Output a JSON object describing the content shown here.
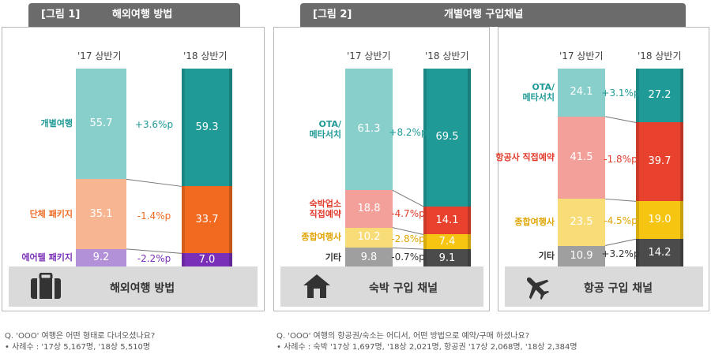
{
  "figure1": {
    "tab_number": "[그림 1]",
    "tab_title": "해외여행 방법",
    "footer_label": "해외여행 방법",
    "footer_icon": "suitcase-icon",
    "note_question": "Q. 'OOO' 여행은 어떤 형태로 다녀오셨나요?",
    "note_sample": "• 사례수 : '17상 5,167명, '18상 5,510명"
  },
  "figure2": {
    "tab_number": "[그림 2]",
    "tab_title": "개별여행 구입채널",
    "lodging_footer_label": "숙박 구입 채널",
    "lodging_footer_icon": "house-icon",
    "flight_footer_label": "항공 구입 채널",
    "flight_footer_icon": "airplane-icon",
    "note_question": "Q. 'OOO' 여행의 항공권/숙소는 어디서, 어떤 방법으로 예약/구매 하셨나요?",
    "note_sample": "• 사례수 : 숙박 '17상 1,697명, '18상 2,021명, 항공권 '17상 2,068명, '18상 2,384명"
  },
  "chart_data": [
    {
      "type": "bar",
      "stacked": true,
      "categories": [
        "'17 상반기",
        "'18 상반기"
      ],
      "series": [
        {
          "name": "개별여행",
          "values": [
            55.7,
            59.3
          ],
          "change": "+3.6%p",
          "colors": [
            "#88cfcb",
            "#1f9a97"
          ],
          "label_color": "#1f9a97"
        },
        {
          "name": "단체 패키지",
          "values": [
            35.1,
            33.7
          ],
          "change": "-1.4%p",
          "colors": [
            "#f8b592",
            "#f26a20"
          ],
          "label_color": "#ef6a22"
        },
        {
          "name": "에어텔 패키지",
          "values": [
            9.2,
            7.0
          ],
          "change": "-2.2%p",
          "colors": [
            "#b391d9",
            "#7a2fb8"
          ],
          "label_color": "#7a2fb8"
        }
      ]
    },
    {
      "type": "bar",
      "stacked": true,
      "categories": [
        "'17 상반기",
        "'18 상반기"
      ],
      "series": [
        {
          "name": "OTA/ 메타서치",
          "values": [
            61.3,
            69.5
          ],
          "change": "+8.2%p",
          "colors": [
            "#88cfcb",
            "#1f9a97"
          ],
          "label_color": "#1f9a97"
        },
        {
          "name": "숙박업소 직접예약",
          "values": [
            18.8,
            14.1
          ],
          "change": "-4.7%p",
          "colors": [
            "#f3a09a",
            "#e8412e"
          ],
          "label_color": "#e23b2c"
        },
        {
          "name": "종합여행사",
          "values": [
            10.2,
            7.4
          ],
          "change": "-2.8%p",
          "colors": [
            "#f8dc78",
            "#f5c511"
          ],
          "label_color": "#e0a400"
        },
        {
          "name": "기타",
          "values": [
            9.8,
            9.1
          ],
          "change": "-0.7%p",
          "colors": [
            "#9f9f9f",
            "#4b4b4b"
          ],
          "label_color": "#333333"
        }
      ]
    },
    {
      "type": "bar",
      "stacked": true,
      "categories": [
        "'17 상반기",
        "'18 상반기"
      ],
      "series": [
        {
          "name": "OTA/ 메타서치",
          "values": [
            24.1,
            27.2
          ],
          "change": "+3.1%p",
          "colors": [
            "#88cfcb",
            "#1f9a97"
          ],
          "label_color": "#1f9a97"
        },
        {
          "name": "항공사 직접예약",
          "values": [
            41.5,
            39.7
          ],
          "change": "-1.8%p",
          "colors": [
            "#f3a09a",
            "#e8412e"
          ],
          "label_color": "#e23b2c"
        },
        {
          "name": "종합여행사",
          "values": [
            23.5,
            19.0
          ],
          "change": "-4.5%p",
          "colors": [
            "#f8dc78",
            "#f5c511"
          ],
          "label_color": "#e0a400"
        },
        {
          "name": "기타",
          "values": [
            10.9,
            14.2
          ],
          "change": "+3.2%p",
          "colors": [
            "#9f9f9f",
            "#4b4b4b"
          ],
          "label_color": "#333333"
        }
      ]
    }
  ]
}
